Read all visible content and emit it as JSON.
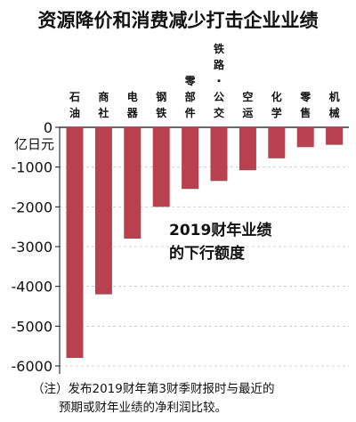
{
  "chart_data": {
    "type": "bar",
    "title": "资源降价和消费减少打击企业业绩",
    "ylabel": "亿日元",
    "categories": [
      "石油",
      "商社",
      "电器",
      "钢铁",
      "零部件",
      "铁路・公交",
      "空运",
      "化学",
      "零售",
      "机械"
    ],
    "values": [
      -5800,
      -4200,
      -2800,
      -2000,
      -1550,
      -1350,
      -1080,
      -780,
      -500,
      -440
    ],
    "ylim": [
      -6000,
      0
    ],
    "yticks": [
      "0",
      "-1000",
      "-2000",
      "-3000",
      "-4000",
      "-5000",
      "-6000"
    ],
    "ytick_values": [
      0,
      -1000,
      -2000,
      -3000,
      -4000,
      -5000,
      -6000
    ],
    "bar_color": "#b8404f",
    "annotation": [
      "2019财年业绩",
      "的下行额度"
    ],
    "note": [
      "（注）发布2019财年第3财季财报时与最近的",
      "预期或财年业绩的净利润比较。"
    ]
  }
}
